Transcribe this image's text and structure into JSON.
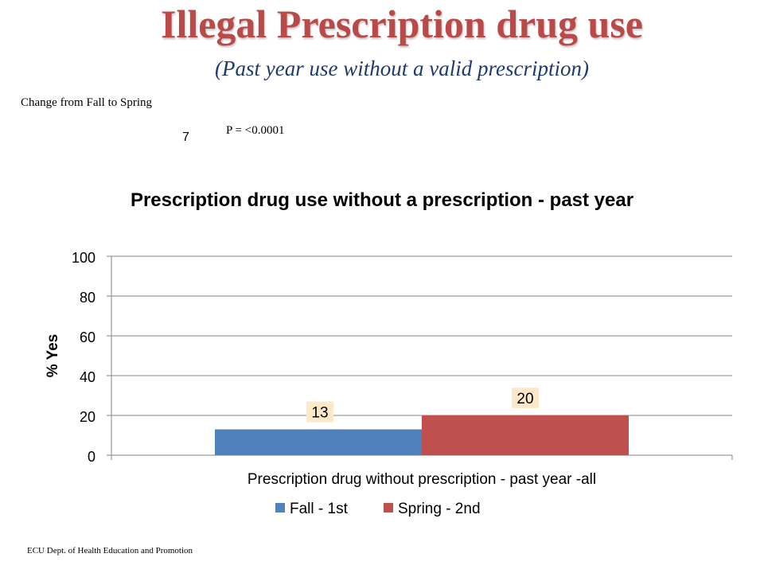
{
  "slide": {
    "title": "Illegal Prescription drug use",
    "subtitle": "(Past year use without a valid prescription)",
    "change_label": "Change  from Fall to Spring",
    "change_value": "7",
    "p_value": "P = <0.0001",
    "footer": "ECU Dept. of Health Education and Promotion"
  },
  "colors": {
    "title": "#b94a48",
    "subtitle": "#1f3b6b",
    "fall": "#4f81bd",
    "spring": "#c0504d",
    "data_label_bg": "#fde9c9"
  },
  "chart_data": {
    "type": "bar",
    "title": "Prescription drug use without a prescription - past year",
    "xlabel": "",
    "ylabel": "% Yes",
    "ylim": [
      0,
      100
    ],
    "yticks": [
      "0",
      "20",
      "40",
      "60",
      "80",
      "100"
    ],
    "grid": true,
    "legend_position": "bottom",
    "categories": [
      "Prescription drug without prescription - past year -all"
    ],
    "series": [
      {
        "name": "Fall - 1st",
        "values": [
          13
        ],
        "color": "#4f81bd"
      },
      {
        "name": "Spring - 2nd",
        "values": [
          20
        ],
        "color": "#c0504d"
      }
    ]
  }
}
